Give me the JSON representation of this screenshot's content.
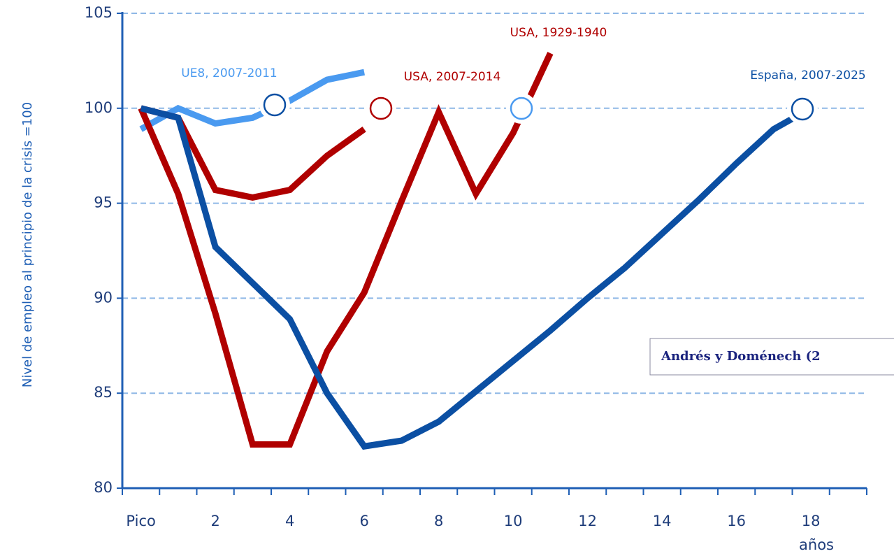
{
  "chart_data": {
    "type": "line",
    "y_label": "Nivel de empleo al principio de la crisis =100",
    "x_label": "años",
    "categories": [
      "Pico",
      null,
      "2",
      null,
      "4",
      null,
      "6",
      null,
      "8",
      null,
      "10",
      null,
      "12",
      null,
      "14",
      null,
      "16",
      null,
      "18",
      null
    ],
    "series": [
      {
        "name": "España, 2007-2025",
        "color": "#0b4fa3",
        "values": [
          100,
          99.5,
          92.7,
          90.8,
          88.9,
          85.0,
          82.2,
          82.5,
          83.5,
          85.1,
          86.7,
          88.3,
          90.0,
          91.6,
          93.4,
          95.2,
          97.1,
          98.9,
          100,
          null
        ]
      },
      {
        "name": "UE8, 2007-2011",
        "color": "#4a9af0",
        "values": [
          98.9,
          100,
          99.2,
          99.5,
          100.4,
          101.5,
          101.9,
          null,
          null,
          null,
          null,
          null,
          null,
          null,
          null,
          null,
          null,
          null,
          null,
          null
        ]
      },
      {
        "name": "USA, 2007-2014",
        "color": "#b00000",
        "values": [
          100,
          99.5,
          95.7,
          95.3,
          95.7,
          97.5,
          98.9,
          null,
          null,
          null,
          null,
          null,
          null,
          null,
          null,
          null,
          null,
          null,
          null,
          null
        ]
      },
      {
        "name": "USA, 1929-1940",
        "color": "#b00000",
        "values": [
          100,
          95.5,
          89.2,
          82.3,
          82.3,
          87.2,
          90.3,
          95.1,
          99.8,
          95.5,
          98.7,
          102.9,
          null,
          null,
          null,
          null,
          null,
          null,
          null,
          null
        ]
      }
    ],
    "source_note": "Andrés y Doménech (2",
    "ylim": [
      80,
      105
    ],
    "yticks": [
      80,
      85,
      90,
      95,
      100,
      105
    ],
    "grid": true
  }
}
